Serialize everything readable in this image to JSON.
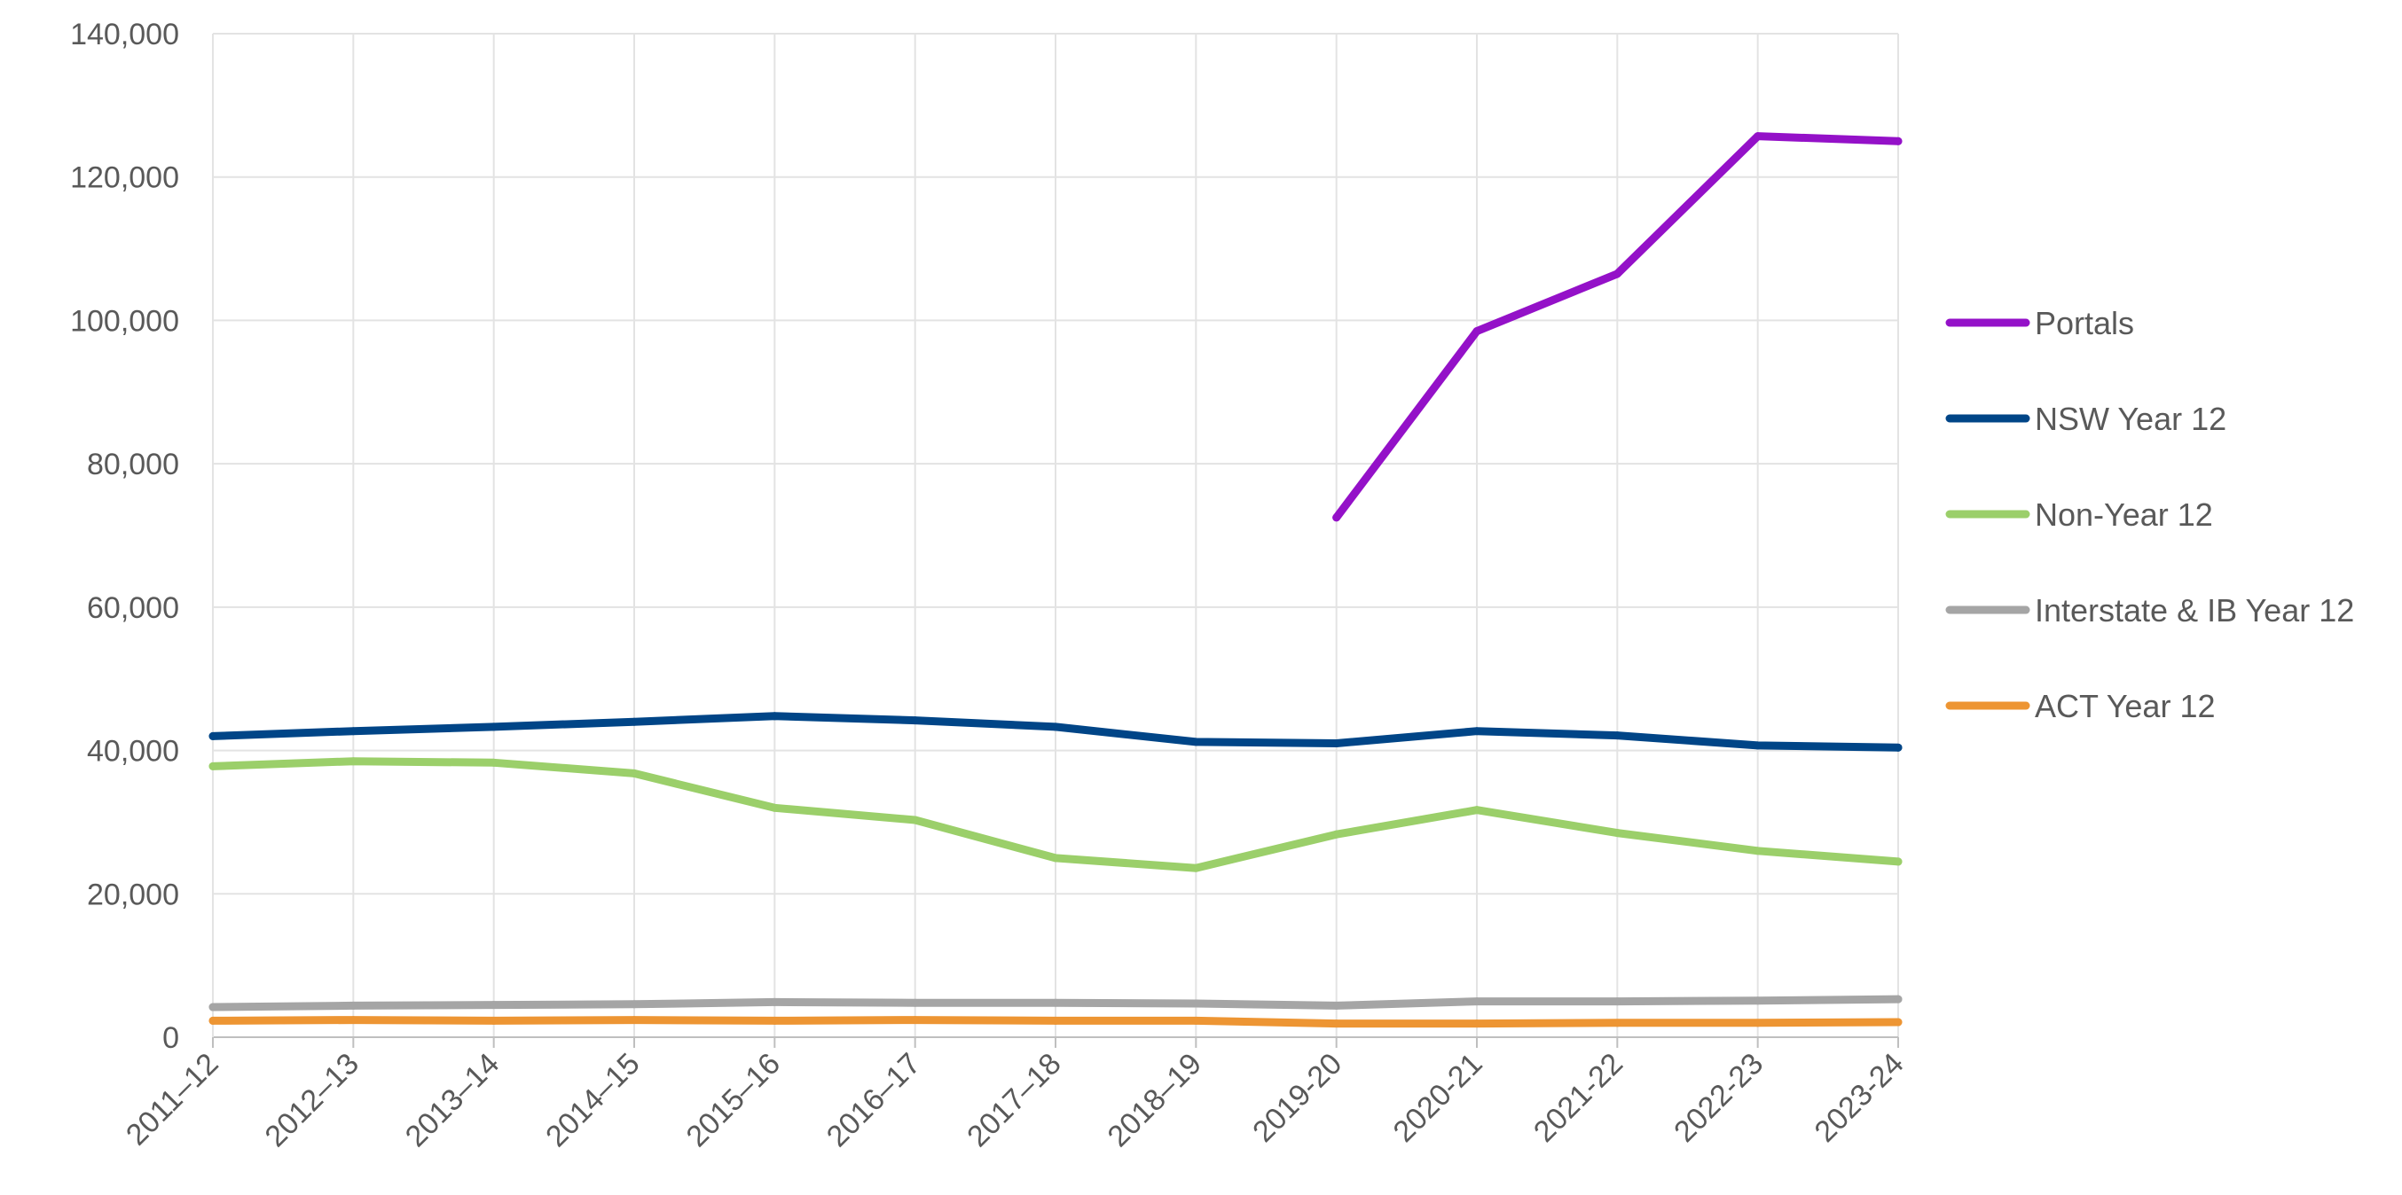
{
  "chart_data": {
    "type": "line",
    "title": "",
    "xlabel": "",
    "ylabel": "",
    "categories": [
      "2011–12",
      "2012–13",
      "2013–14",
      "2014–15",
      "2015–16",
      "2016–17",
      "2017–18",
      "2018–19",
      "2019-20",
      "2020-21",
      "2021-22",
      "2022-23",
      "2023-24"
    ],
    "ylim": [
      0,
      140000
    ],
    "yticks": [
      0,
      20000,
      40000,
      60000,
      80000,
      100000,
      120000,
      140000
    ],
    "ytick_labels": [
      "0",
      "20,000",
      "40,000",
      "60,000",
      "80,000",
      "100,000",
      "120,000",
      "140,000"
    ],
    "grid": true,
    "legend_position": "right",
    "series": [
      {
        "name": "Portals",
        "color": "#9411c8",
        "values": [
          null,
          null,
          null,
          null,
          null,
          null,
          null,
          null,
          72500,
          98500,
          106500,
          125700,
          125000
        ]
      },
      {
        "name": "NSW Year 12",
        "color": "#004587",
        "values": [
          42000,
          42700,
          43300,
          44000,
          44800,
          44200,
          43300,
          41200,
          41000,
          42700,
          42100,
          40700,
          40400
        ]
      },
      {
        "name": "Non-Year 12",
        "color": "#9bcf6a",
        "values": [
          37800,
          38500,
          38300,
          36800,
          32000,
          30300,
          25000,
          23600,
          28300,
          31700,
          28500,
          26000,
          24500
        ]
      },
      {
        "name": "Interstate & IB Year 12",
        "color": "#a5a5a5",
        "values": [
          4200,
          4400,
          4500,
          4600,
          4900,
          4800,
          4800,
          4700,
          4400,
          5000,
          5000,
          5100,
          5300
        ]
      },
      {
        "name": "ACT Year 12",
        "color": "#ed9533",
        "values": [
          2300,
          2400,
          2300,
          2400,
          2300,
          2400,
          2300,
          2300,
          1900,
          1900,
          2000,
          2000,
          2100
        ]
      }
    ]
  }
}
